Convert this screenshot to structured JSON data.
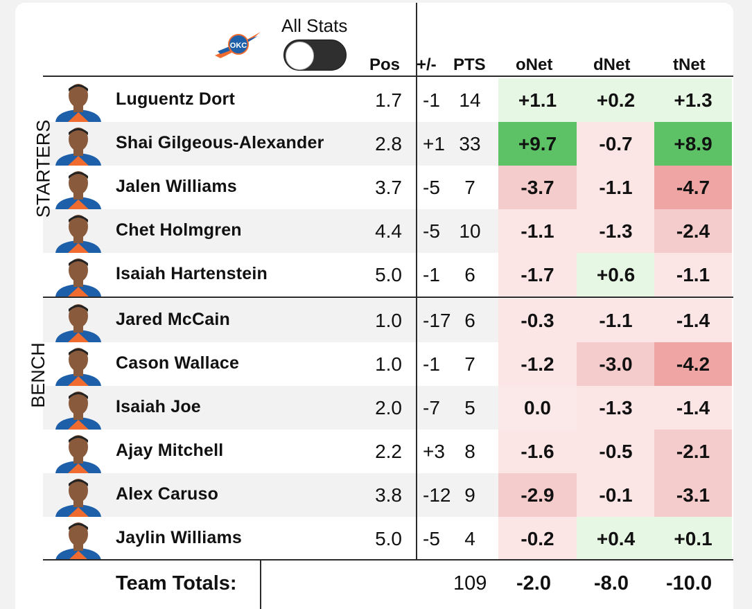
{
  "header": {
    "toggle_label": "All Stats",
    "toggle_on": false,
    "columns": {
      "pos": "Pos",
      "pm": "+/-",
      "pts": "PTS",
      "onet": "oNet",
      "dnet": "dNet",
      "tnet": "tNet"
    }
  },
  "groups": {
    "starters": "STARTERS",
    "bench": "BENCH"
  },
  "colors": {
    "strong_green": "#5cc265",
    "light_green": "#e6f7e3",
    "light_red": "#fbe5e5",
    "mid_red": "#f5cccc",
    "strong_red": "#f0a5a5",
    "neutral": "#fbe9e9"
  },
  "players": [
    {
      "name": "Luguentz Dort",
      "pos": "1.7",
      "pm": "-1",
      "pts": "14",
      "onet": "+1.1",
      "dnet": "+0.2",
      "tnet": "+1.3"
    },
    {
      "name": "Shai Gilgeous-Alexander",
      "pos": "2.8",
      "pm": "+1",
      "pts": "33",
      "onet": "+9.7",
      "dnet": "-0.7",
      "tnet": "+8.9"
    },
    {
      "name": "Jalen Williams",
      "pos": "3.7",
      "pm": "-5",
      "pts": "7",
      "onet": "-3.7",
      "dnet": "-1.1",
      "tnet": "-4.7"
    },
    {
      "name": "Chet Holmgren",
      "pos": "4.4",
      "pm": "-5",
      "pts": "10",
      "onet": "-1.1",
      "dnet": "-1.3",
      "tnet": "-2.4"
    },
    {
      "name": "Isaiah Hartenstein",
      "pos": "5.0",
      "pm": "-1",
      "pts": "6",
      "onet": "-1.7",
      "dnet": "+0.6",
      "tnet": "-1.1"
    },
    {
      "name": "Jared McCain",
      "pos": "1.0",
      "pm": "-17",
      "pts": "6",
      "onet": "-0.3",
      "dnet": "-1.1",
      "tnet": "-1.4"
    },
    {
      "name": "Cason Wallace",
      "pos": "1.0",
      "pm": "-1",
      "pts": "7",
      "onet": "-1.2",
      "dnet": "-3.0",
      "tnet": "-4.2"
    },
    {
      "name": "Isaiah Joe",
      "pos": "2.0",
      "pm": "-7",
      "pts": "5",
      "onet": "0.0",
      "dnet": "-1.3",
      "tnet": "-1.4"
    },
    {
      "name": "Ajay Mitchell",
      "pos": "2.2",
      "pm": "+3",
      "pts": "8",
      "onet": "-1.6",
      "dnet": "-0.5",
      "tnet": "-2.1"
    },
    {
      "name": "Alex Caruso",
      "pos": "3.8",
      "pm": "-12",
      "pts": "9",
      "onet": "-2.9",
      "dnet": "-0.1",
      "tnet": "-3.1"
    },
    {
      "name": "Jaylin Williams",
      "pos": "5.0",
      "pm": "-5",
      "pts": "4",
      "onet": "-0.2",
      "dnet": "+0.4",
      "tnet": "+0.1"
    }
  ],
  "totals": {
    "label": "Team Totals:",
    "pts": "109",
    "onet": "-2.0",
    "dnet": "-8.0",
    "tnet": "-10.0"
  }
}
